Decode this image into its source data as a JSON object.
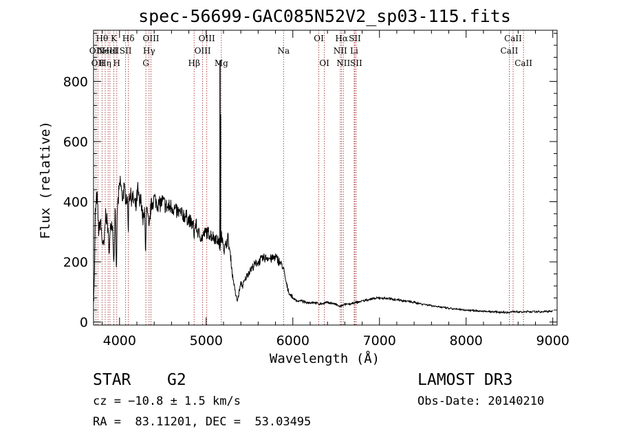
{
  "chart_data": {
    "type": "line",
    "title": "spec-56699-GAC085N52V2_sp03-115.fits",
    "xlabel": "Wavelength (Å)",
    "ylabel": "Flux (relative)",
    "xlim": [
      3700,
      9050
    ],
    "ylim": [
      -10,
      970
    ],
    "xticks": [
      4000,
      5000,
      6000,
      7000,
      8000,
      9000
    ],
    "yticks": [
      0,
      200,
      400,
      600,
      800
    ],
    "xtick_labels": [
      "4000",
      "5000",
      "6000",
      "7000",
      "8000",
      "9000"
    ],
    "ytick_labels": [
      "0",
      "200",
      "400",
      "600",
      "800"
    ],
    "series": [
      {
        "name": "flux",
        "x": [
          3700,
          3710,
          3720,
          3740,
          3760,
          3780,
          3800,
          3820,
          3840,
          3860,
          3880,
          3900,
          3920,
          3935,
          3950,
          3965,
          3968,
          3975,
          3990,
          4010,
          4030,
          4050,
          4070,
          4090,
          4101,
          4110,
          4130,
          4150,
          4170,
          4190,
          4210,
          4230,
          4250,
          4270,
          4290,
          4300,
          4310,
          4330,
          4340,
          4360,
          4380,
          4400,
          4450,
          4500,
          4550,
          4600,
          4650,
          4700,
          4750,
          4800,
          4850,
          4861,
          4880,
          4900,
          4950,
          5000,
          5050,
          5100,
          5140,
          5160,
          5175,
          5183,
          5190,
          5200,
          5210,
          5230,
          5250,
          5270,
          5290,
          5300,
          5320,
          5340,
          5360,
          5380,
          5400,
          5420,
          5450,
          5480,
          5500,
          5530,
          5560,
          5600,
          5650,
          5700,
          5750,
          5800,
          5850,
          5880,
          5893,
          5910,
          5930,
          5960,
          6000,
          6050,
          6100,
          6150,
          6200,
          6250,
          6300,
          6350,
          6400,
          6450,
          6500,
          6550,
          6563,
          6600,
          6650,
          6700,
          6750,
          6800,
          6850,
          6900,
          6950,
          7000,
          7100,
          7200,
          7300,
          7400,
          7500,
          7600,
          7700,
          7800,
          7900,
          8000,
          8100,
          8200,
          8300,
          8400,
          8500,
          8542,
          8600,
          8662,
          8700,
          8800,
          8900,
          9000
        ],
        "values": [
          60,
          150,
          360,
          420,
          300,
          340,
          270,
          250,
          360,
          330,
          240,
          330,
          320,
          190,
          380,
          150,
          250,
          380,
          420,
          470,
          410,
          440,
          420,
          410,
          300,
          430,
          420,
          410,
          400,
          380,
          440,
          390,
          410,
          340,
          360,
          220,
          380,
          340,
          300,
          380,
          400,
          410,
          390,
          400,
          380,
          385,
          370,
          360,
          355,
          340,
          320,
          290,
          330,
          300,
          280,
          300,
          290,
          280,
          270,
          250,
          290,
          260,
          300,
          250,
          240,
          260,
          280,
          240,
          200,
          160,
          130,
          90,
          70,
          100,
          130,
          120,
          140,
          160,
          170,
          180,
          190,
          200,
          210,
          215,
          210,
          215,
          200,
          185,
          175,
          150,
          120,
          95,
          80,
          70,
          70,
          65,
          65,
          65,
          60,
          62,
          65,
          63,
          58,
          50,
          55,
          58,
          60,
          62,
          66,
          70,
          73,
          76,
          78,
          80,
          78,
          75,
          70,
          65,
          60,
          55,
          50,
          45,
          42,
          40,
          38,
          36,
          34,
          33,
          32,
          35,
          34,
          33,
          35,
          34,
          35,
          36
        ]
      }
    ],
    "spikes": [
      {
        "x": 5160,
        "y": 340
      },
      {
        "x": 5160,
        "y": 870
      },
      {
        "x": 5165,
        "y": 690
      },
      {
        "x": 5170,
        "y": 300
      },
      {
        "x": 3702,
        "y": 70
      }
    ],
    "lines": [
      {
        "x": 3727,
        "label": "OII",
        "row": 2
      },
      {
        "x": 3750,
        "label": "OII",
        "row": 3
      },
      {
        "x": 3798,
        "label": "Hθ",
        "row": 1
      },
      {
        "x": 3835,
        "label": "Hη",
        "row": 3
      },
      {
        "x": 3869,
        "label": "NeIII",
        "row": 2
      },
      {
        "x": 3889,
        "label": "HeI",
        "row": 2
      },
      {
        "x": 3934,
        "label": "K",
        "row": 1
      },
      {
        "x": 3968,
        "label": "H",
        "row": 3
      },
      {
        "x": 4070,
        "label": "SII",
        "row": 2
      },
      {
        "x": 4102,
        "label": "Hδ",
        "row": 1
      },
      {
        "x": 4304,
        "label": "G",
        "row": 3
      },
      {
        "x": 4341,
        "label": "Hγ",
        "row": 2
      },
      {
        "x": 4363,
        "label": "OIII",
        "row": 1
      },
      {
        "x": 4861,
        "label": "Hβ",
        "row": 3
      },
      {
        "x": 4959,
        "label": "OIII",
        "row": 2
      },
      {
        "x": 5007,
        "label": "OIII",
        "row": 1
      },
      {
        "x": 5175,
        "label": "Mg",
        "row": 3
      },
      {
        "x": 5893,
        "label": "Na",
        "row": 2
      },
      {
        "x": 6300,
        "label": "OI",
        "row": 1
      },
      {
        "x": 6364,
        "label": "OI",
        "row": 3
      },
      {
        "x": 6548,
        "label": "NII",
        "row": 2
      },
      {
        "x": 6563,
        "label": "Hα",
        "row": 1
      },
      {
        "x": 6583,
        "label": "NII",
        "row": 3
      },
      {
        "x": 6708,
        "label": "Li",
        "row": 2
      },
      {
        "x": 6716,
        "label": "SII",
        "row": 1
      },
      {
        "x": 6731,
        "label": "SII",
        "row": 3
      },
      {
        "x": 8498,
        "label": "CaII",
        "row": 2
      },
      {
        "x": 8542,
        "label": "CaII",
        "row": 1
      },
      {
        "x": 8662,
        "label": "CaII",
        "row": 3
      }
    ]
  },
  "info": {
    "object_class": "STAR",
    "subclass": "G2",
    "redshift": "cz = −10.8 ± 1.5 km/s",
    "coords": "RA =  83.11201, DEC =  53.03495",
    "survey": "LAMOST DR3",
    "obs_date": "Obs-Date: 20140210"
  },
  "colors": {
    "line_marker": "#a03030",
    "spectrum": "#000000"
  }
}
